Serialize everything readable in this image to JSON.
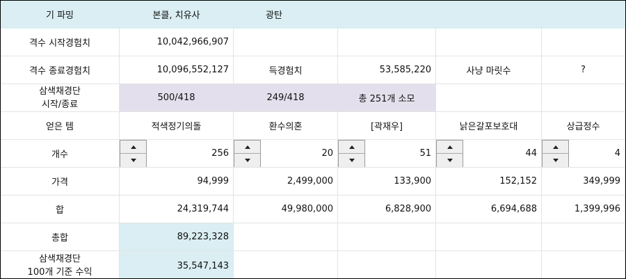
{
  "header": {
    "a": "기 파밍",
    "b": "본클, 치유사",
    "c": "광탄"
  },
  "exp_start": {
    "label": "격수 시작경험치",
    "value": "10,042,966,907"
  },
  "exp_end": {
    "label": "격수 종료경험치",
    "value": "10,096,552,127",
    "gain_label": "득경험치",
    "gain_value": "53,585,220",
    "hunt_label": "사냥 마릿수",
    "hunt_value": "?"
  },
  "armor": {
    "label": "삼색채경단\n시작/종료",
    "val1": "500/418",
    "val2": "249/418",
    "summary": "총 251개 소모"
  },
  "items": {
    "row_label": "얻은 템",
    "names": [
      "적색정기의돌",
      "환수의혼",
      "[곽재우]",
      "낡은갈포보호대",
      "상급정수"
    ],
    "count_label": "개수",
    "counts": [
      "256",
      "20",
      "51",
      "44",
      "4"
    ],
    "price_label": "가격",
    "prices": [
      "94,999",
      "2,499,000",
      "133,900",
      "152,152",
      "349,999"
    ],
    "sum_label": "합",
    "sums": [
      "24,319,744",
      "49,980,000",
      "6,828,900",
      "6,694,688",
      "1,399,996"
    ]
  },
  "total": {
    "label": "총합",
    "value": "89,223,328"
  },
  "profit": {
    "label": "삼색채경단\n100개 기준 수익",
    "value": "35,547,143"
  }
}
